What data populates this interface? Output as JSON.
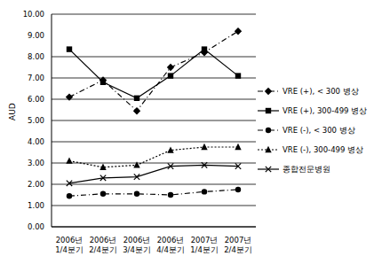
{
  "chart_data": {
    "type": "line",
    "y_label": "AUD",
    "categories": [
      "2006년 1/4분기",
      "2006년 2/4분기",
      "2006년 3/4분기",
      "2006년 4/4분기",
      "2007년 1/4분기",
      "2007년 2/4분기"
    ],
    "series": [
      {
        "name": "VRE (+), < 300 병상",
        "color": "#000000",
        "marker": "diamond",
        "line_style": "dashdot",
        "values": [
          6.1,
          6.9,
          5.45,
          7.5,
          8.2,
          9.2
        ]
      },
      {
        "name": "VRE (+), 300-499 병상",
        "color": "#000000",
        "marker": "square",
        "line_style": "solid",
        "values": [
          8.35,
          6.8,
          6.05,
          7.1,
          8.35,
          7.1
        ]
      },
      {
        "name": "VRE (-), < 300 병상",
        "color": "#000000",
        "marker": "circle",
        "line_style": "dashdot",
        "values": [
          1.45,
          1.55,
          1.55,
          1.5,
          1.65,
          1.75
        ]
      },
      {
        "name": "VRE (-), 300-499 병상",
        "color": "#000000",
        "marker": "triangle",
        "line_style": "dotted",
        "values": [
          3.1,
          2.8,
          2.9,
          3.6,
          3.75,
          3.75
        ]
      },
      {
        "name": "종합전문병원",
        "color": "#000000",
        "marker": "x",
        "line_style": "solid",
        "values": [
          2.05,
          2.3,
          2.35,
          2.85,
          2.9,
          2.85
        ]
      }
    ],
    "ylim": [
      0,
      10
    ],
    "yticks": [
      {
        "value": 0,
        "label": "0.00"
      },
      {
        "value": 1,
        "label": "1.00"
      },
      {
        "value": 2,
        "label": "2.00"
      },
      {
        "value": 3,
        "label": "3.00"
      },
      {
        "value": 4,
        "label": "4.00"
      },
      {
        "value": 5,
        "label": "5.00"
      },
      {
        "value": 6,
        "label": "6.00"
      },
      {
        "value": 7,
        "label": "7.00"
      },
      {
        "value": 8,
        "label": "8.00"
      },
      {
        "value": 9,
        "label": "9.00"
      },
      {
        "value": 10,
        "label": "10.00"
      }
    ],
    "grid": true,
    "legend": "right"
  }
}
